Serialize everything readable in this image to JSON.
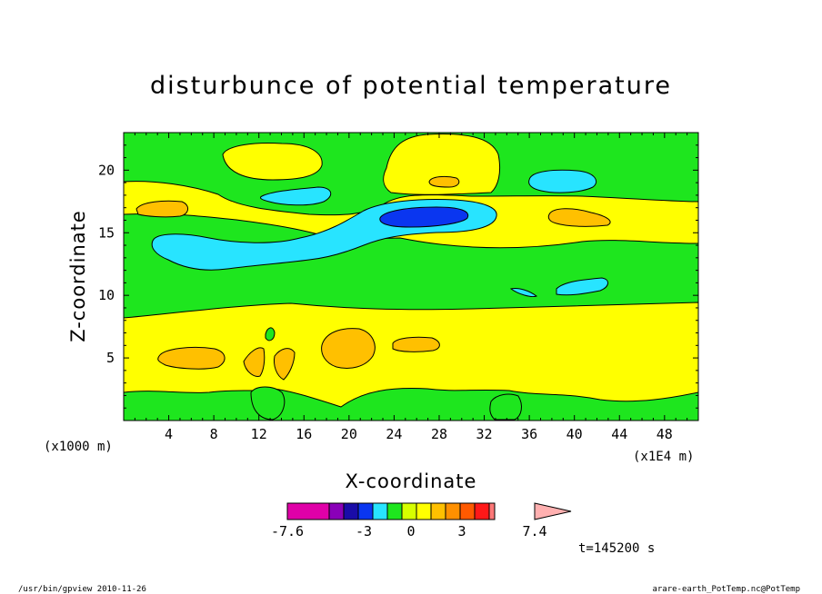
{
  "chart_data": {
    "type": "heatmap",
    "title": "disturbunce of potential temperature",
    "xlabel": "X-coordinate",
    "ylabel": "Z-coordinate",
    "x_unit_left": "(x1000 m)",
    "x_unit_right": "(x1E4 m)",
    "xlim": [
      0,
      51
    ],
    "ylim": [
      0,
      23
    ],
    "x_ticks": [
      "4",
      "8",
      "12",
      "16",
      "20",
      "24",
      "28",
      "32",
      "36",
      "40",
      "44",
      "48"
    ],
    "y_ticks": [
      "5",
      "10",
      "15",
      "20"
    ],
    "colorbar": {
      "levels": [
        -7.6,
        -6.6,
        -5.6,
        -4.6,
        -3,
        -2,
        -1,
        0,
        1,
        2,
        3,
        4,
        5,
        6,
        7.4
      ],
      "labels": [
        "-7.6",
        "-3",
        "0",
        "3",
        "7.4"
      ],
      "colors": [
        "#e000a8",
        "#8a00b8",
        "#1a0ca8",
        "#0a36f0",
        "#28e4ff",
        "#1ee61e",
        "#d6ff00",
        "#ffff00",
        "#ffc000",
        "#ff9000",
        "#ff5a00",
        "#ff1818",
        "#ff7878",
        "#ffb0b0"
      ]
    },
    "regions": [
      {
        "name": "band-0-10",
        "value": 0.5,
        "x": [
          0,
          51
        ],
        "y": [
          0,
          10
        ]
      },
      {
        "name": "band-10-17",
        "value": -0.5,
        "x": [
          0,
          51
        ],
        "y": [
          10,
          17
        ]
      },
      {
        "name": "warm-band-z5",
        "value": 0.5,
        "x": [
          0,
          51
        ],
        "y": [
          1.5,
          8.5
        ]
      },
      {
        "name": "cool-core-x26-z16",
        "value": -3.5,
        "x": [
          23,
          30
        ],
        "y": [
          15.5,
          16.7
        ]
      },
      {
        "name": "cool-band-z14",
        "value": -1.5,
        "x": [
          2,
          33
        ],
        "y": [
          12,
          17.5
        ]
      },
      {
        "name": "warm-blob-x21-z6",
        "value": 1.5,
        "x": [
          17.5,
          22.5
        ],
        "y": [
          4.2,
          7.5
        ]
      },
      {
        "name": "warm-cap-x27-z21",
        "value": 0.5,
        "x": [
          23,
          33
        ],
        "y": [
          18,
          22.5
        ]
      }
    ],
    "annotations": [
      "t=145200 s"
    ]
  },
  "footer": {
    "left": "/usr/bin/gpview   2010-11-26",
    "right": "arare-earth_PotTemp.nc@PotTemp"
  }
}
